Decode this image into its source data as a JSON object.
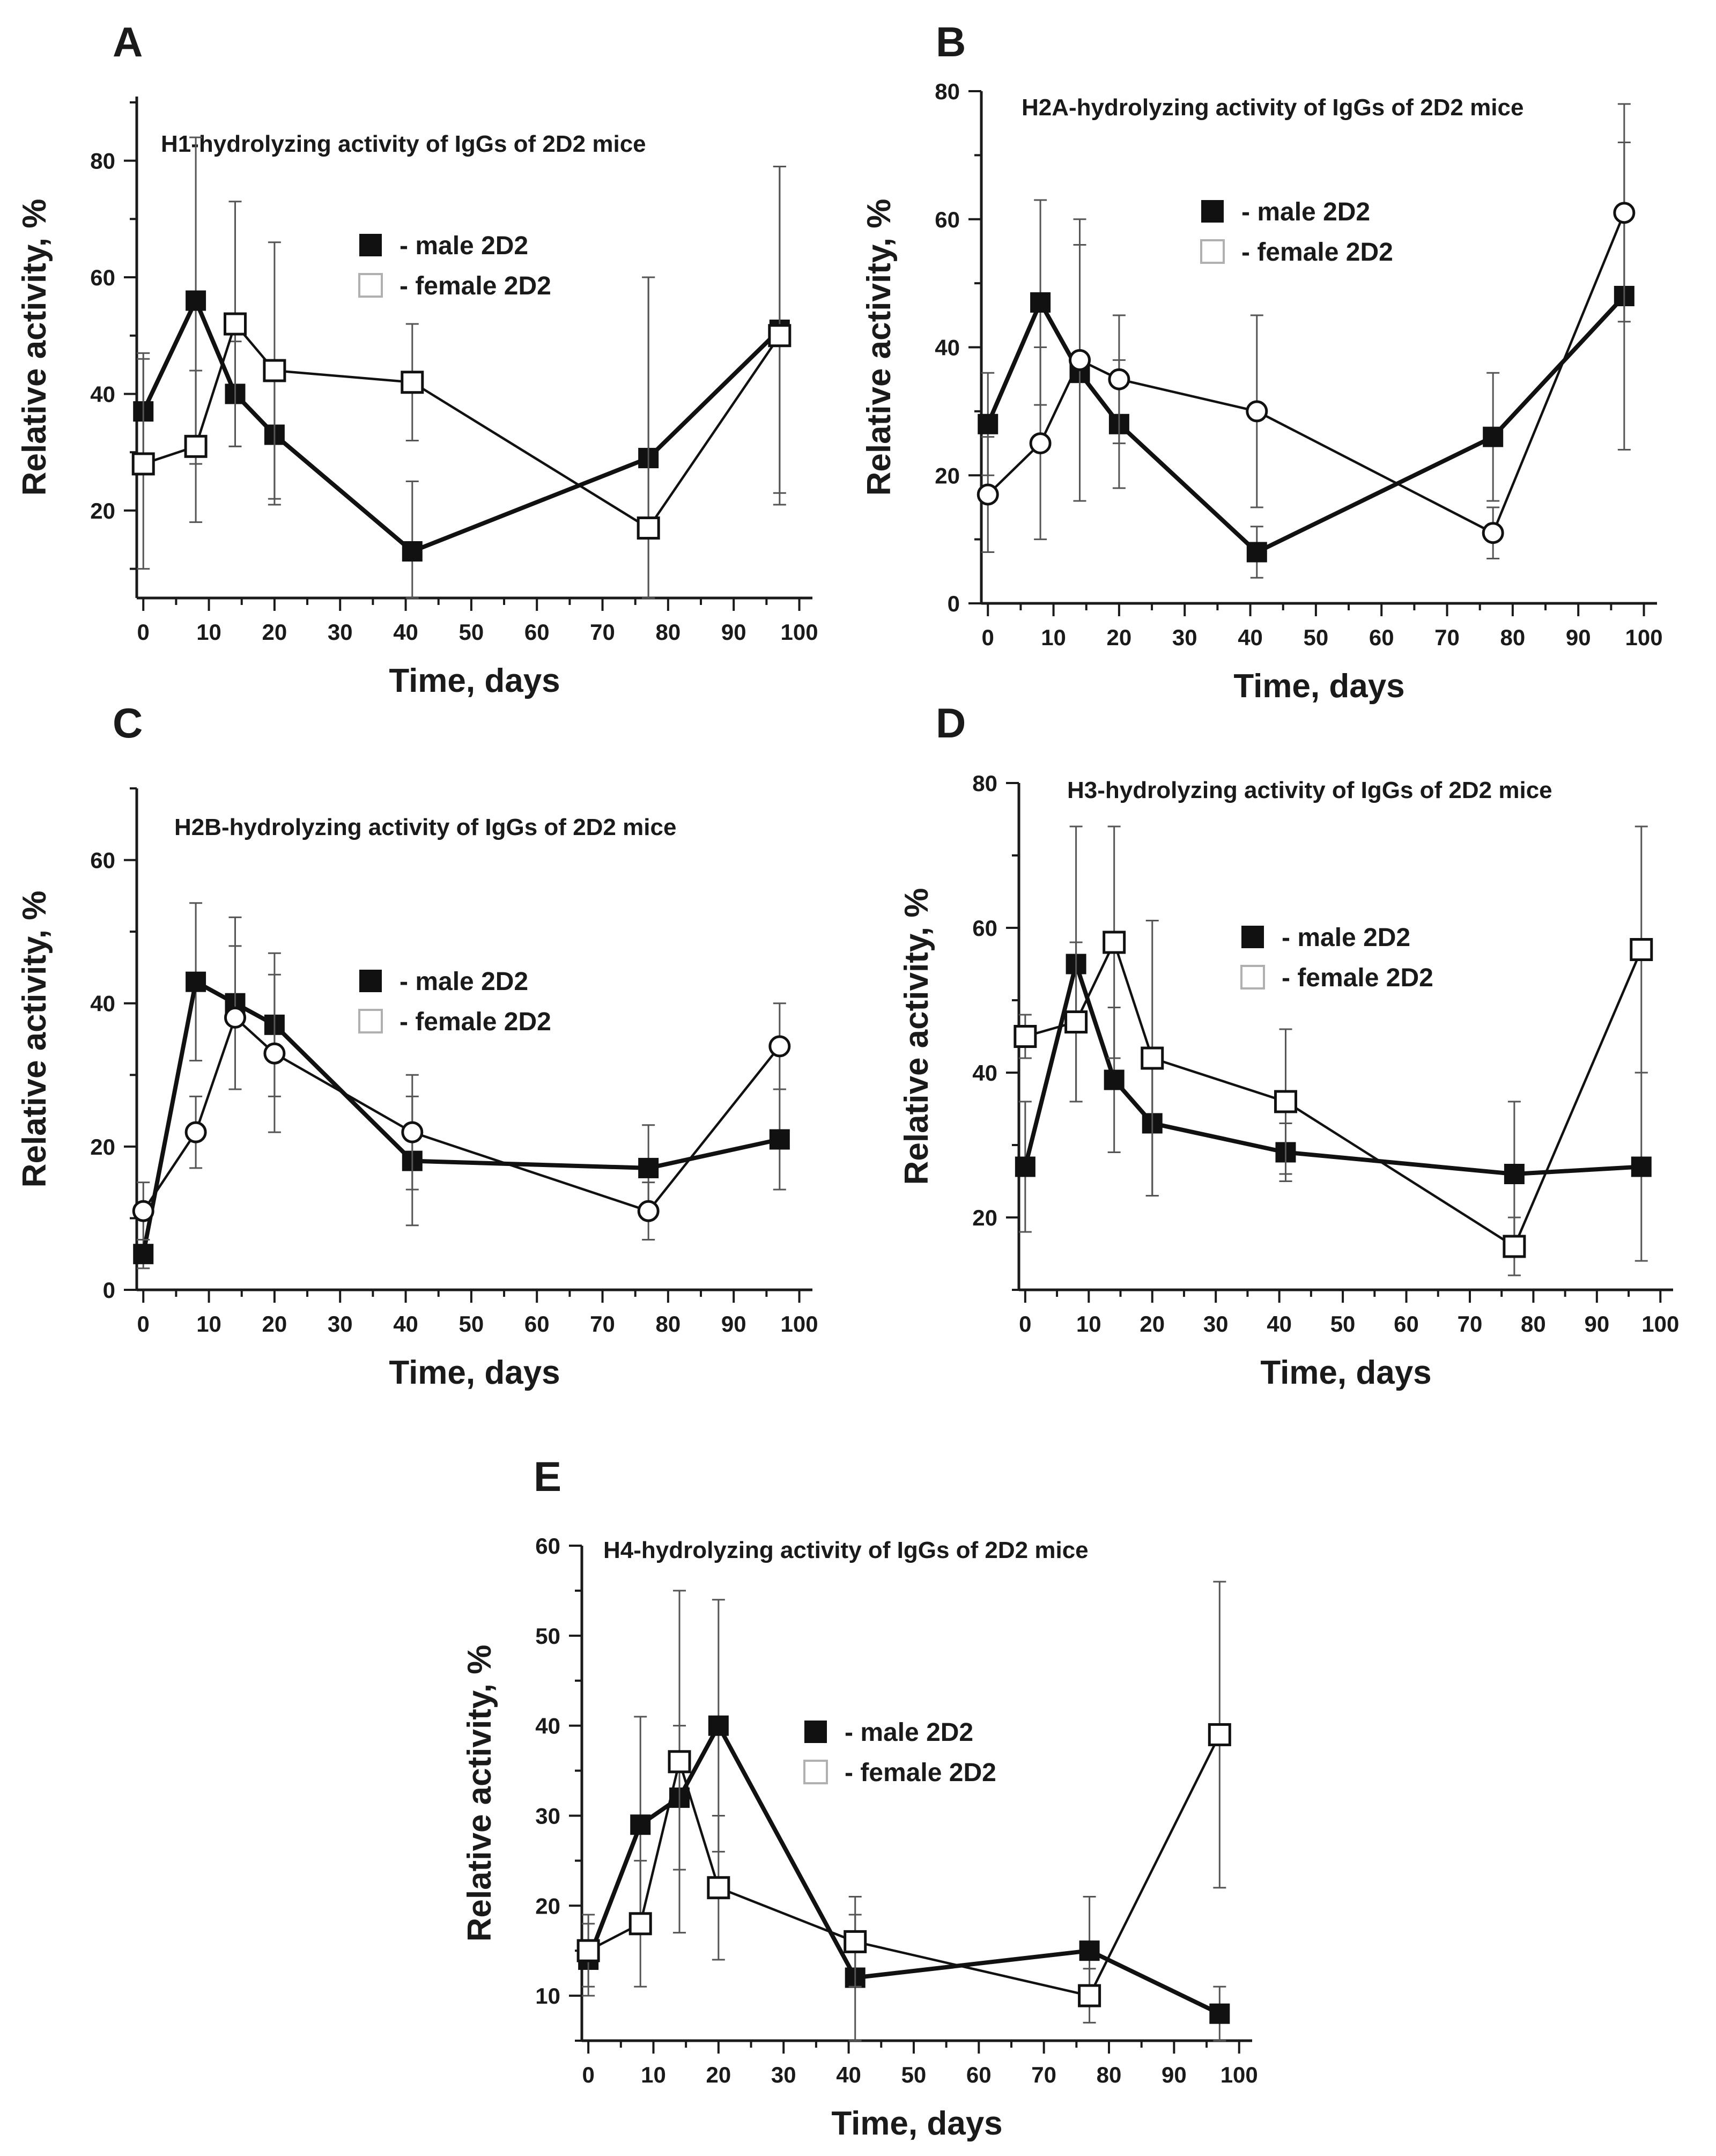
{
  "figure": {
    "chart_data": [
      {
        "panel": "A",
        "type": "line",
        "title": "H1-hydrolyzing  activity of IgGs of 2D2 mice",
        "xlabel": "Time, days",
        "ylabel": "Relative activity, %",
        "xlim": [
          -1,
          102
        ],
        "ylim": [
          5,
          91
        ],
        "xticks": [
          0,
          10,
          20,
          30,
          40,
          50,
          60,
          70,
          80,
          90,
          100
        ],
        "yticks": [
          20,
          40,
          60,
          80
        ],
        "legend_position": "center",
        "series": [
          {
            "name": "- male 2D2",
            "marker": "filled-square",
            "x": [
              0,
              8,
              14,
              20,
              41,
              77,
              97
            ],
            "y": [
              37,
              56,
              40,
              33,
              13,
              29,
              51
            ],
            "err": [
              10,
              28,
              9,
              12,
              12,
              31,
              28
            ]
          },
          {
            "name": "- female 2D2",
            "marker": "open-square",
            "x": [
              0,
              8,
              14,
              20,
              41,
              77,
              97
            ],
            "y": [
              28,
              31,
              52,
              44,
              42,
              17,
              50
            ],
            "err": [
              18,
              13,
              21,
              22,
              10,
              43,
              29
            ]
          }
        ]
      },
      {
        "panel": "B",
        "type": "line",
        "title": "H2A-hydrolyzing  activity of IgGs of 2D2 mice",
        "xlabel": "Time, days",
        "ylabel": "Relative activity, %",
        "xlim": [
          -1,
          102
        ],
        "ylim": [
          0,
          80
        ],
        "xticks": [
          0,
          10,
          20,
          30,
          40,
          50,
          60,
          70,
          80,
          90,
          100
        ],
        "yticks": [
          0,
          20,
          40,
          60,
          80
        ],
        "legend_position": "top-right",
        "series": [
          {
            "name": "- male 2D2",
            "marker": "filled-square",
            "x": [
              0,
              8,
              14,
              20,
              41,
              77,
              97
            ],
            "y": [
              28,
              47,
              36,
              28,
              8,
              26,
              48
            ],
            "err": [
              8,
              16,
              20,
              10,
              4,
              10,
              24
            ]
          },
          {
            "name": "- female 2D2",
            "marker": "open-circle",
            "x": [
              0,
              8,
              14,
              20,
              41,
              77,
              97
            ],
            "y": [
              17,
              25,
              38,
              35,
              30,
              11,
              61
            ],
            "err": [
              9,
              15,
              22,
              10,
              15,
              4,
              17
            ]
          }
        ]
      },
      {
        "panel": "C",
        "type": "line",
        "title": "H2B-hydrolyzing  activity of IgGs of 2D2 mice",
        "xlabel": "Time, days",
        "ylabel": "Relative activity, %",
        "xlim": [
          -1,
          102
        ],
        "ylim": [
          0,
          70
        ],
        "xticks": [
          0,
          10,
          20,
          30,
          40,
          50,
          60,
          70,
          80,
          90,
          100
        ],
        "yticks": [
          0,
          20,
          40,
          60
        ],
        "legend_position": "center-right",
        "series": [
          {
            "name": "- male 2D2",
            "marker": "filled-square",
            "x": [
              0,
              8,
              14,
              20,
              41,
              77,
              97
            ],
            "y": [
              5,
              43,
              40,
              37,
              18,
              17,
              21
            ],
            "err": [
              2,
              11,
              12,
              10,
              9,
              6,
              7
            ]
          },
          {
            "name": "- female 2D2",
            "marker": "open-circle",
            "x": [
              0,
              8,
              14,
              20,
              41,
              77,
              97
            ],
            "y": [
              11,
              22,
              38,
              33,
              22,
              11,
              34
            ],
            "err": [
              4,
              5,
              10,
              11,
              8,
              4,
              6
            ]
          }
        ]
      },
      {
        "panel": "D",
        "type": "line",
        "title": "H3-hydrolyzing  activity of IgGs of 2D2 mice",
        "xlabel": "Time, days",
        "ylabel": "Relative activity, %",
        "xlim": [
          -1,
          102
        ],
        "ylim": [
          10,
          80
        ],
        "xticks": [
          0,
          10,
          20,
          30,
          40,
          50,
          60,
          70,
          80,
          90,
          100
        ],
        "yticks": [
          20,
          40,
          60,
          80
        ],
        "legend_position": "center-right",
        "series": [
          {
            "name": "- male 2D2",
            "marker": "filled-square",
            "x": [
              0,
              8,
              14,
              20,
              41,
              77,
              97
            ],
            "y": [
              27,
              55,
              39,
              33,
              29,
              26,
              27
            ],
            "err": [
              9,
              19,
              10,
              10,
              4,
              10,
              13
            ]
          },
          {
            "name": "- female 2D2",
            "marker": "open-square",
            "x": [
              0,
              8,
              14,
              20,
              41,
              77,
              97
            ],
            "y": [
              45,
              47,
              58,
              42,
              36,
              16,
              57
            ],
            "err": [
              3,
              11,
              16,
              19,
              10,
              4,
              17
            ]
          }
        ]
      },
      {
        "panel": "E",
        "type": "line",
        "title": "H4-hydrolyzing  activity of IgGs of 2D2 mice",
        "xlabel": "Time, days",
        "ylabel": "Relative activity, %",
        "xlim": [
          -1,
          102
        ],
        "ylim": [
          5,
          60
        ],
        "xticks": [
          0,
          10,
          20,
          30,
          40,
          50,
          60,
          70,
          80,
          90,
          100
        ],
        "yticks": [
          10,
          20,
          30,
          40,
          50,
          60
        ],
        "legend_position": "center-right",
        "series": [
          {
            "name": "- male 2D2",
            "marker": "filled-square",
            "x": [
              0,
              8,
              14,
              20,
              41,
              77,
              97
            ],
            "y": [
              14,
              29,
              32,
              40,
              12,
              15,
              8
            ],
            "err": [
              4,
              12,
              8,
              14,
              7,
              6,
              3
            ]
          },
          {
            "name": "- female 2D2",
            "marker": "open-square",
            "x": [
              0,
              8,
              14,
              20,
              41,
              77,
              97
            ],
            "y": [
              15,
              18,
              36,
              22,
              16,
              10,
              39
            ],
            "err": [
              4,
              7,
              19,
              8,
              5,
              3,
              17
            ]
          }
        ]
      }
    ]
  }
}
